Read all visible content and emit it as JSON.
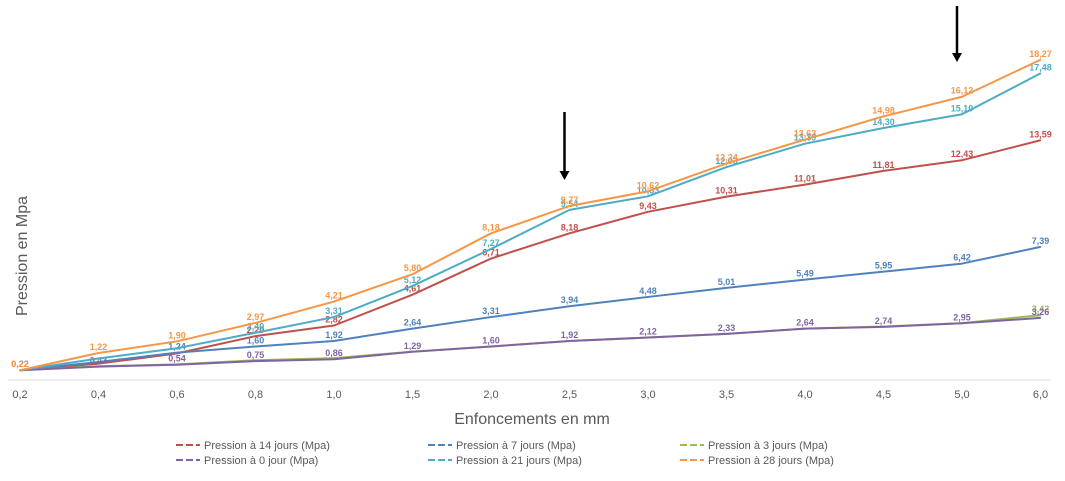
{
  "chart_data": {
    "type": "line",
    "xlabel": "Enfoncements en mm",
    "ylabel": "Pression en Mpa",
    "categories": [
      "0,2",
      "0,4",
      "0,6",
      "0,8",
      "1,0",
      "1,5",
      "2,0",
      "2,5",
      "3,0",
      "3,5",
      "4,0",
      "4,5",
      "5,0",
      "6,0"
    ],
    "ylim": [
      0,
      20
    ],
    "grid": false,
    "legend_position": "bottom",
    "arrows_at_categories": [
      "2,5",
      "5,0"
    ],
    "series": [
      {
        "name": "Pression à 14 jours (Mpa)",
        "color": "#c0504d",
        "values": [
          0.22,
          0.6,
          1.2,
          2.2,
          2.82,
          4.61,
          6.71,
          8.18,
          9.43,
          10.31,
          11.01,
          11.81,
          12.43,
          13.59
        ],
        "labels": [
          "",
          "",
          "",
          "2,20",
          "2,82",
          "4,61",
          "6,71",
          "8,18",
          "9,43",
          "10,31",
          "11,01",
          "11,81",
          "12,43",
          "13,59"
        ]
      },
      {
        "name": "Pression à 7 jours (Mpa)",
        "color": "#4f81bd",
        "values": [
          0.22,
          0.7,
          1.24,
          1.6,
          1.92,
          2.64,
          3.31,
          3.94,
          4.48,
          5.01,
          5.49,
          5.95,
          6.42,
          7.39
        ],
        "labels": [
          "",
          "",
          "1,24",
          "1,60",
          "1,92",
          "2,64",
          "3,31",
          "3,94",
          "4,48",
          "5,01",
          "5,49",
          "5,95",
          "6,42",
          "7,39"
        ]
      },
      {
        "name": "Pression à 3 jours (Mpa)",
        "color": "#9bbb59",
        "values": [
          0.22,
          0.45,
          0.56,
          0.8,
          0.92,
          1.3,
          1.6,
          1.92,
          2.12,
          2.33,
          2.64,
          2.76,
          2.96,
          3.42
        ],
        "labels": [
          "",
          "",
          "",
          "",
          "",
          "",
          "",
          "",
          "",
          "",
          "",
          "",
          "",
          "3,42"
        ]
      },
      {
        "name": "Pression à 0 jour (Mpa)",
        "color": "#8064a2",
        "values": [
          0.22,
          0.43,
          0.54,
          0.75,
          0.86,
          1.29,
          1.6,
          1.92,
          2.12,
          2.33,
          2.64,
          2.74,
          2.95,
          3.26
        ],
        "labels": [
          "0,22",
          "0,43",
          "0,54",
          "0,75",
          "0,86",
          "1,29",
          "1,60",
          "1,92",
          "2,12",
          "2,33",
          "2,64",
          "2,74",
          "2,95",
          "3,26"
        ]
      },
      {
        "name": "Pression à 21 jours (Mpa)",
        "color": "#4bacc6",
        "values": [
          0.22,
          0.9,
          1.5,
          2.4,
          3.31,
          5.12,
          7.27,
          9.54,
          10.33,
          12.03,
          13.39,
          14.3,
          15.1,
          17.48
        ],
        "labels": [
          "",
          "",
          "",
          "2,40",
          "3,31",
          "5,12",
          "7,27",
          "9,54",
          "10,33",
          "12,03",
          "13,39",
          "14,30",
          "15,10",
          "17,48"
        ]
      },
      {
        "name": "Pression à 28 jours (Mpa)",
        "color": "#f79646",
        "values": [
          0.22,
          1.22,
          1.9,
          2.97,
          4.21,
          5.8,
          8.18,
          9.77,
          10.62,
          12.24,
          13.63,
          14.98,
          16.12,
          18.27
        ],
        "labels": [
          "0,22",
          "1,22",
          "1,90",
          "2,97",
          "4,21",
          "5,80",
          "8,18",
          "9,77",
          "10,62",
          "12,24",
          "13,63",
          "14,98",
          "16,12",
          "18,27"
        ]
      }
    ]
  }
}
